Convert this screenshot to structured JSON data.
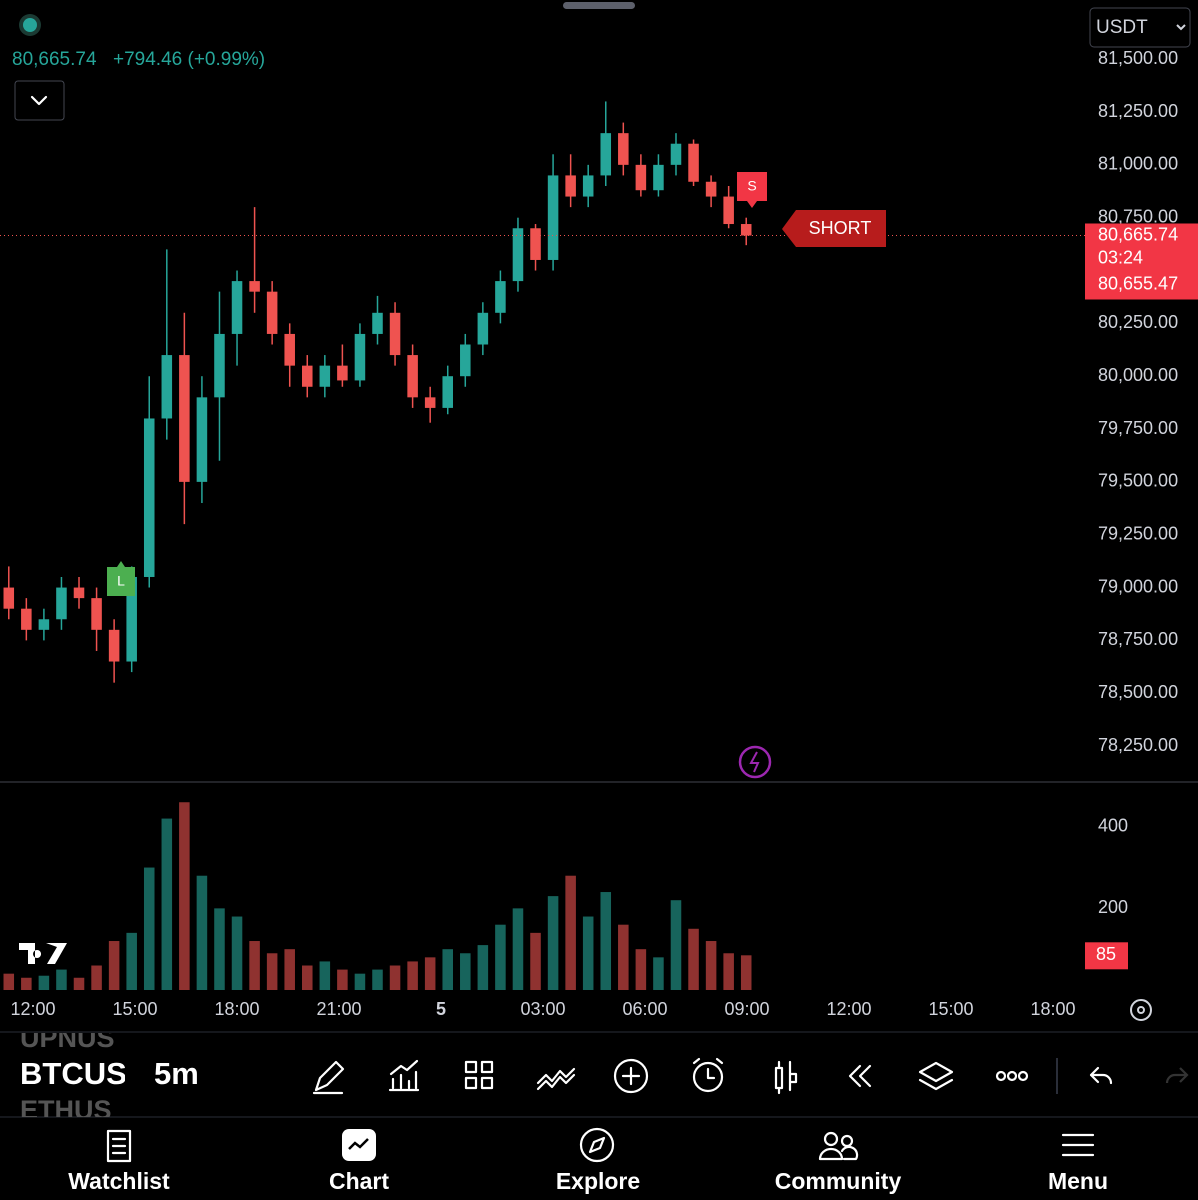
{
  "header": {
    "price": "80,665.74",
    "change": "+794.46 (+0.99%)",
    "currency": "USDT"
  },
  "chart_data": {
    "type": "candlestick",
    "up_color": "#26a69a",
    "down_color": "#ef5350",
    "open": [
      79000,
      78900,
      78800,
      78850,
      79000,
      78950,
      78800,
      78650,
      79050,
      79800,
      80100,
      79500,
      79900,
      80200,
      80450,
      80400,
      80200,
      80050,
      79950,
      80050,
      79980,
      80200,
      80300,
      80100,
      79900,
      79850,
      80000,
      80150,
      80300,
      80450,
      80700,
      80550,
      80950,
      80850,
      80950,
      81150,
      81000,
      80880,
      81000,
      81100,
      80920,
      80850,
      80720
    ],
    "high": [
      79100,
      78950,
      78900,
      79050,
      79050,
      79000,
      78850,
      79100,
      80000,
      80600,
      80300,
      80000,
      80400,
      80500,
      80800,
      80450,
      80250,
      80100,
      80100,
      80150,
      80250,
      80380,
      80350,
      80150,
      79950,
      80050,
      80200,
      80350,
      80500,
      80750,
      80720,
      81050,
      81050,
      81000,
      81300,
      81200,
      81050,
      81050,
      81150,
      81120,
      80950,
      80900,
      80750
    ],
    "low": [
      78850,
      78750,
      78750,
      78800,
      78900,
      78700,
      78550,
      78600,
      79000,
      79700,
      79300,
      79400,
      79600,
      80050,
      80300,
      80150,
      79950,
      79900,
      79900,
      79950,
      79950,
      80150,
      80050,
      79850,
      79780,
      79820,
      79950,
      80100,
      80250,
      80400,
      80500,
      80500,
      80800,
      80800,
      80900,
      80950,
      80850,
      80850,
      80950,
      80900,
      80800,
      80700,
      80620
    ],
    "close": [
      78900,
      78800,
      78850,
      79000,
      78950,
      78800,
      78650,
      79050,
      79800,
      80100,
      79500,
      79900,
      80200,
      80450,
      80400,
      80200,
      80050,
      79950,
      80050,
      79980,
      80200,
      80300,
      80100,
      79900,
      79850,
      80000,
      80150,
      80300,
      80450,
      80700,
      80550,
      80950,
      80850,
      80950,
      81150,
      81000,
      80880,
      81000,
      81100,
      80920,
      80850,
      80720,
      80665.74
    ],
    "volume": [
      40,
      30,
      35,
      50,
      30,
      60,
      120,
      140,
      300,
      420,
      460,
      280,
      200,
      180,
      120,
      90,
      100,
      60,
      70,
      50,
      40,
      50,
      60,
      70,
      80,
      100,
      90,
      110,
      160,
      200,
      140,
      230,
      280,
      180,
      240,
      160,
      100,
      80,
      220,
      150,
      120,
      90,
      85
    ],
    "ylim": [
      78080,
      81780
    ],
    "yticks": [
      {
        "value": 81500,
        "label": "81,500.00"
      },
      {
        "value": 81250,
        "label": "81,250.00"
      },
      {
        "value": 81000,
        "label": "81,000.00"
      },
      {
        "value": 80750,
        "label": "80,750.00"
      },
      {
        "value": 80250,
        "label": "80,250.00"
      },
      {
        "value": 80000,
        "label": "80,000.00"
      },
      {
        "value": 79750,
        "label": "79,750.00"
      },
      {
        "value": 79500,
        "label": "79,500.00"
      },
      {
        "value": 79250,
        "label": "79,250.00"
      },
      {
        "value": 79000,
        "label": "79,000.00"
      },
      {
        "value": 78750,
        "label": "78,750.00"
      },
      {
        "value": 78500,
        "label": "78,500.00"
      },
      {
        "value": 78250,
        "label": "78,250.00"
      }
    ],
    "volume_ylim": [
      0,
      490
    ],
    "volume_yticks": [
      200,
      400
    ],
    "volume_last_label": "85",
    "last_price": {
      "value": 80665.74,
      "label": "80,665.74"
    },
    "countdown": "03:24",
    "bid_label": "80,655.47",
    "xticks": [
      "12:00",
      "15:00",
      "18:00",
      "21:00",
      "5",
      "03:00",
      "06:00",
      "09:00",
      "12:00",
      "15:00",
      "18:00"
    ],
    "signals": {
      "long": "L",
      "short": "S",
      "short_tag": "SHORT"
    }
  },
  "toolbar": {
    "symbols": [
      "UPNUS",
      "BTCUSD",
      "ETHUS"
    ],
    "interval": "5m"
  },
  "nav": [
    "Watchlist",
    "Chart",
    "Explore",
    "Community",
    "Menu"
  ]
}
